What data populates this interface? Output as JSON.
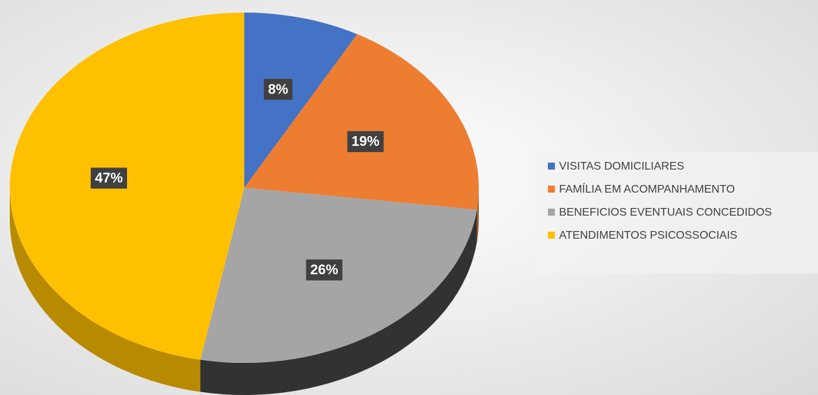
{
  "chart_data": {
    "type": "pie",
    "categories": [
      "VISITAS DOMICILIARES",
      "FAMÍLIA EM ACOMPANHAMENTO",
      "BENEFICIOS EVENTUAIS CONCEDIDOS",
      "ATENDIMENTOS PSICOSSOCIAIS"
    ],
    "values": [
      8,
      19,
      26,
      47
    ],
    "value_labels": [
      "8%",
      "19%",
      "26%",
      "47%"
    ],
    "colors": [
      "#4472c4",
      "#ed7d31",
      "#a5a5a5",
      "#ffc000"
    ],
    "legend": "right"
  }
}
